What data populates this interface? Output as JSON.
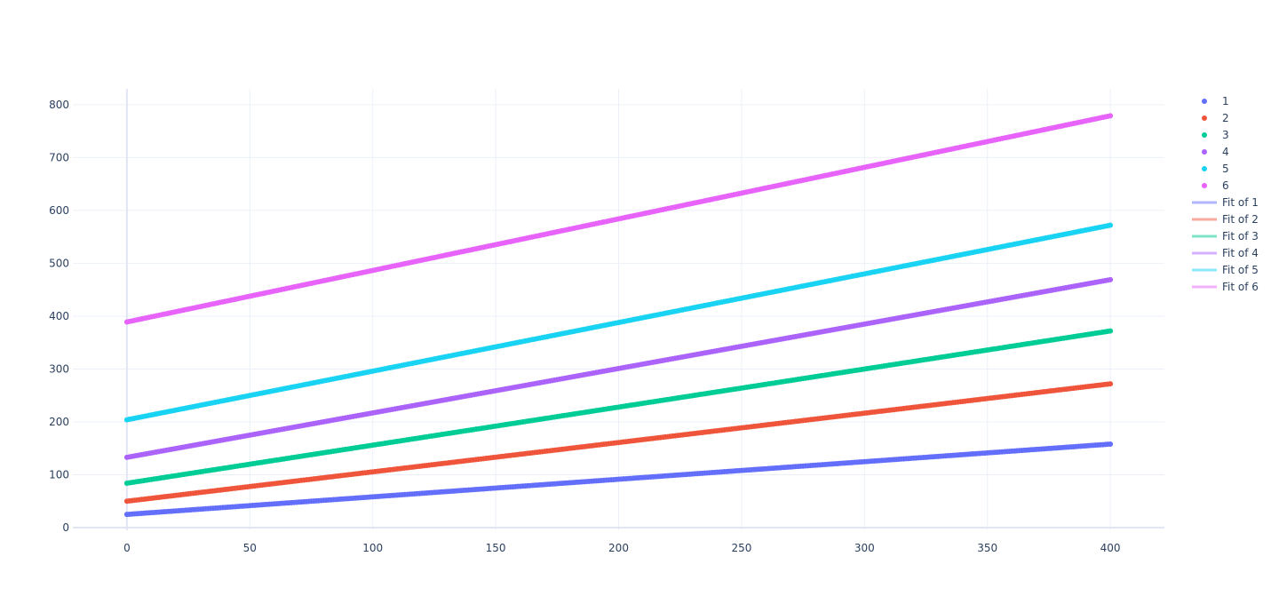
{
  "chart_data": {
    "type": "scatter",
    "title": "",
    "xlabel": "",
    "ylabel": "",
    "xlim": [
      -22,
      422
    ],
    "ylim": [
      -5,
      830
    ],
    "x_ticks": [
      0,
      50,
      100,
      150,
      200,
      250,
      300,
      350,
      400
    ],
    "y_ticks": [
      0,
      100,
      200,
      300,
      400,
      500,
      600,
      700,
      800
    ],
    "grid": true,
    "legend_position": "right",
    "x": {
      "start": 0,
      "end": 400,
      "step": 1
    },
    "series": [
      {
        "name": "1",
        "mode": "markers",
        "color": "#636efa",
        "start_value": 25,
        "end_value": 158
      },
      {
        "name": "2",
        "mode": "markers",
        "color": "#EF553B",
        "start_value": 50,
        "end_value": 272
      },
      {
        "name": "3",
        "mode": "markers",
        "color": "#00cc96",
        "start_value": 84,
        "end_value": 372
      },
      {
        "name": "4",
        "mode": "markers",
        "color": "#ab63fa",
        "start_value": 133,
        "end_value": 469
      },
      {
        "name": "5",
        "mode": "markers",
        "color": "#19d3f3",
        "start_value": 204,
        "end_value": 572
      },
      {
        "name": "6",
        "mode": "markers",
        "color": "#e763fa",
        "start_value": 389,
        "end_value": 779
      },
      {
        "name": "Fit of 1",
        "mode": "line",
        "color": "#636efa",
        "intercept": 25,
        "slope": 0.3325
      },
      {
        "name": "Fit of 2",
        "mode": "line",
        "color": "#EF553B",
        "intercept": 50,
        "slope": 0.555
      },
      {
        "name": "Fit of 3",
        "mode": "line",
        "color": "#00cc96",
        "intercept": 84,
        "slope": 0.72
      },
      {
        "name": "Fit of 4",
        "mode": "line",
        "color": "#ab63fa",
        "intercept": 133,
        "slope": 0.84
      },
      {
        "name": "Fit of 5",
        "mode": "line",
        "color": "#19d3f3",
        "intercept": 204,
        "slope": 0.92
      },
      {
        "name": "Fit of 6",
        "mode": "line",
        "color": "#e763fa",
        "intercept": 389,
        "slope": 0.975
      }
    ]
  }
}
